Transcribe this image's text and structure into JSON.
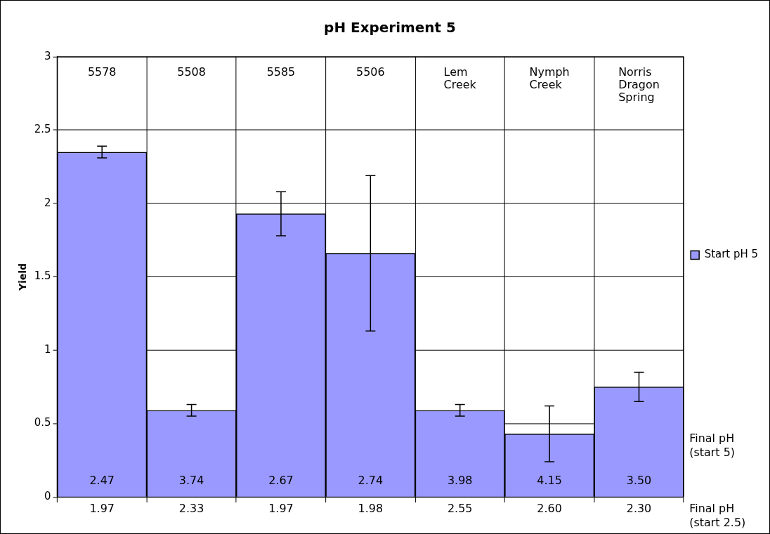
{
  "chart_data": {
    "type": "bar",
    "title": "pH Experiment 5",
    "ylabel": "Yield",
    "categories": [
      "5578",
      "5508",
      "5585",
      "5506",
      "Lem Creek",
      "Nymph Creek",
      "Norris Dragon Spring"
    ],
    "series": [
      {
        "name": "Start pH 5",
        "color": "#9999ff",
        "values": [
          2.35,
          0.59,
          1.93,
          1.66,
          0.59,
          0.43,
          0.75
        ],
        "errors": [
          0.04,
          0.04,
          0.15,
          0.53,
          0.04,
          0.19,
          0.1
        ]
      }
    ],
    "ylim": [
      0,
      3
    ],
    "yticks": [
      0,
      0.5,
      1,
      1.5,
      2,
      2.5,
      3
    ],
    "grid": true,
    "legend": "right",
    "annotations": [
      "2.47",
      "3.74",
      "2.67",
      "2.74",
      "3.98",
      "4.15",
      "3.50",
      "1.97",
      "2.33",
      "1.97",
      "1.98",
      "2.55",
      "2.60",
      "2.30",
      "Final pH (start 5)",
      "Final pH (start 2.5)"
    ]
  }
}
